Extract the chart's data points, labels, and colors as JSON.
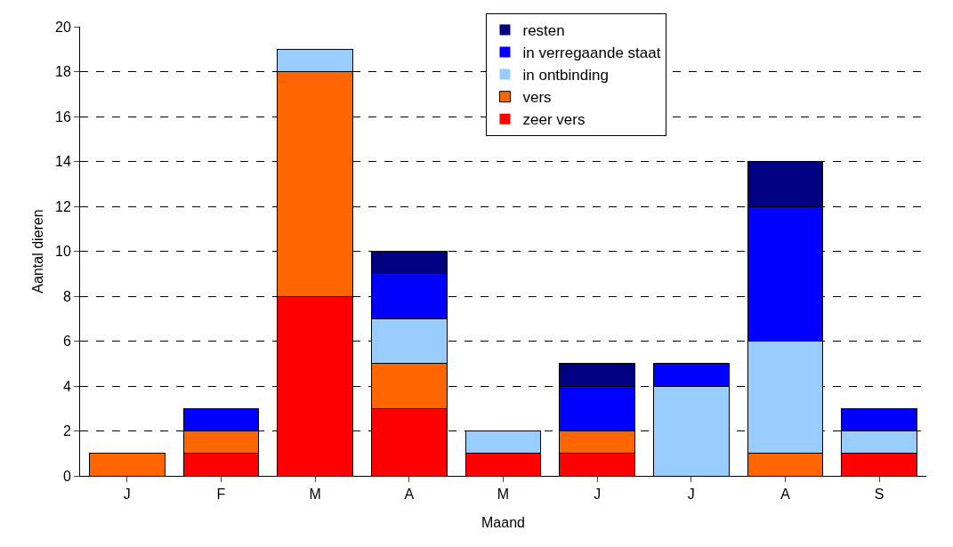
{
  "chart_data": {
    "type": "bar",
    "stacked": true,
    "xlabel": "Maand",
    "ylabel": "Aantal dieren",
    "categories": [
      "J",
      "F",
      "M",
      "A",
      "M",
      "J",
      "J",
      "A",
      "S"
    ],
    "series": [
      {
        "name": "zeer vers",
        "color": "#ff0000",
        "values": [
          0,
          1,
          8,
          3,
          1,
          1,
          0,
          0,
          1
        ]
      },
      {
        "name": "vers",
        "color": "#ff6600",
        "values": [
          1,
          1,
          10,
          2,
          0,
          1,
          0,
          1,
          0
        ]
      },
      {
        "name": "in ontbinding",
        "color": "#99ccff",
        "values": [
          0,
          0,
          1,
          2,
          1,
          0,
          4,
          5,
          1
        ]
      },
      {
        "name": "in verregaande staat",
        "color": "#0000ff",
        "values": [
          0,
          1,
          0,
          2,
          0,
          2,
          1,
          6,
          1
        ]
      },
      {
        "name": "resten",
        "color": "#000080",
        "values": [
          0,
          0,
          0,
          1,
          0,
          1,
          0,
          2,
          0
        ]
      }
    ],
    "ylim": [
      0,
      20
    ],
    "yticks": [
      0,
      2,
      4,
      6,
      8,
      10,
      12,
      14,
      16,
      18,
      20
    ],
    "grid": "y",
    "legend": "top"
  }
}
